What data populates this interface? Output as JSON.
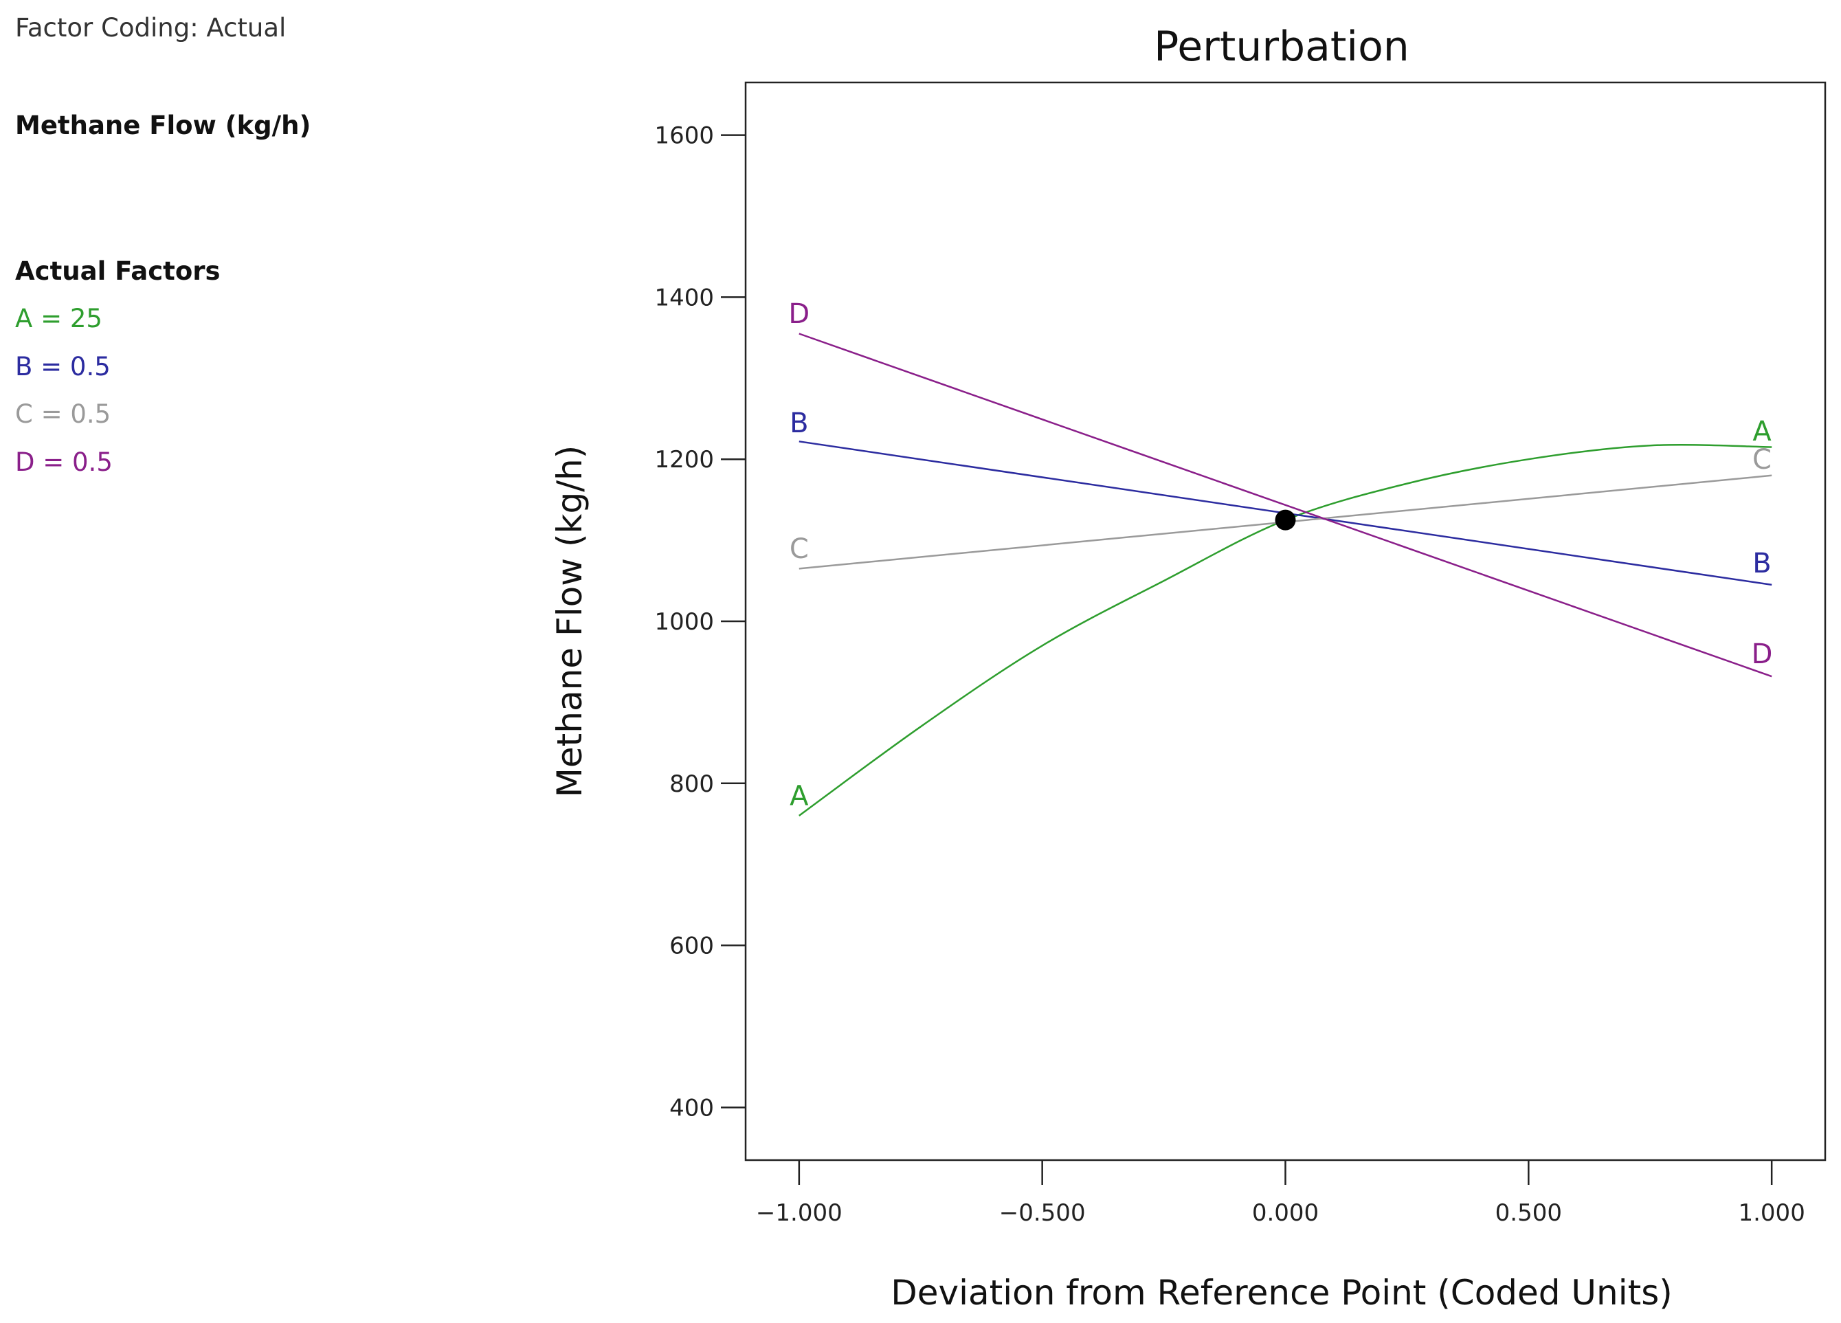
{
  "legend_panel": {
    "factor_coding": "Factor Coding: Actual",
    "response_name": "Methane Flow (kg/h)",
    "actual_factors_heading": "Actual Factors",
    "factors": [
      {
        "text": "A = 25",
        "color": "#2e9e2e"
      },
      {
        "text": "B = 0.5",
        "color": "#2c2ca0"
      },
      {
        "text": "C = 0.5",
        "color": "#9a9a9a"
      },
      {
        "text": "D = 0.5",
        "color": "#8a1f8a"
      }
    ]
  },
  "chart_data": {
    "type": "line",
    "title": "Perturbation",
    "xlabel": "Deviation from Reference Point (Coded Units)",
    "ylabel": "Methane Flow (kg/h)",
    "xlim": [
      -1.11,
      1.11
    ],
    "ylim": [
      335,
      1665
    ],
    "x_ticks": [
      -1,
      -0.5,
      0,
      0.5,
      1
    ],
    "x_tick_labels": [
      "−1.000",
      "−0.500",
      "0.000",
      "0.500",
      "1.000"
    ],
    "y_ticks": [
      400,
      600,
      800,
      1000,
      1200,
      1400,
      1600
    ],
    "y_tick_labels": [
      "400",
      "600",
      "800",
      "1000",
      "1200",
      "1400",
      "1600"
    ],
    "reference_point": {
      "x": 0,
      "y": 1125
    },
    "series": [
      {
        "name": "A",
        "color": "#2e9e2e",
        "x": [
          -1,
          -0.75,
          -0.5,
          -0.25,
          0,
          0.25,
          0.5,
          0.75,
          1
        ],
        "y": [
          760,
          870,
          970,
          1050,
          1125,
          1170,
          1200,
          1217,
          1215
        ]
      },
      {
        "name": "B",
        "color": "#2c2ca0",
        "x": [
          -1,
          1
        ],
        "y": [
          1222,
          1045
        ]
      },
      {
        "name": "C",
        "color": "#9a9a9a",
        "x": [
          -1,
          1
        ],
        "y": [
          1065,
          1180
        ]
      },
      {
        "name": "D",
        "color": "#8a1f8a",
        "x": [
          -1,
          1
        ],
        "y": [
          1355,
          932
        ]
      }
    ],
    "curve_labels": [
      {
        "text": "A",
        "series": "A",
        "x": -1,
        "y": 785
      },
      {
        "text": "A",
        "series": "A",
        "x": 0.98,
        "y": 1235
      },
      {
        "text": "B",
        "series": "B",
        "x": -1,
        "y": 1245
      },
      {
        "text": "B",
        "series": "B",
        "x": 0.98,
        "y": 1072
      },
      {
        "text": "C",
        "series": "C",
        "x": -1,
        "y": 1090
      },
      {
        "text": "C",
        "series": "C",
        "x": 0.98,
        "y": 1200
      },
      {
        "text": "D",
        "series": "D",
        "x": -1,
        "y": 1380
      },
      {
        "text": "D",
        "series": "D",
        "x": 0.98,
        "y": 960
      }
    ]
  }
}
